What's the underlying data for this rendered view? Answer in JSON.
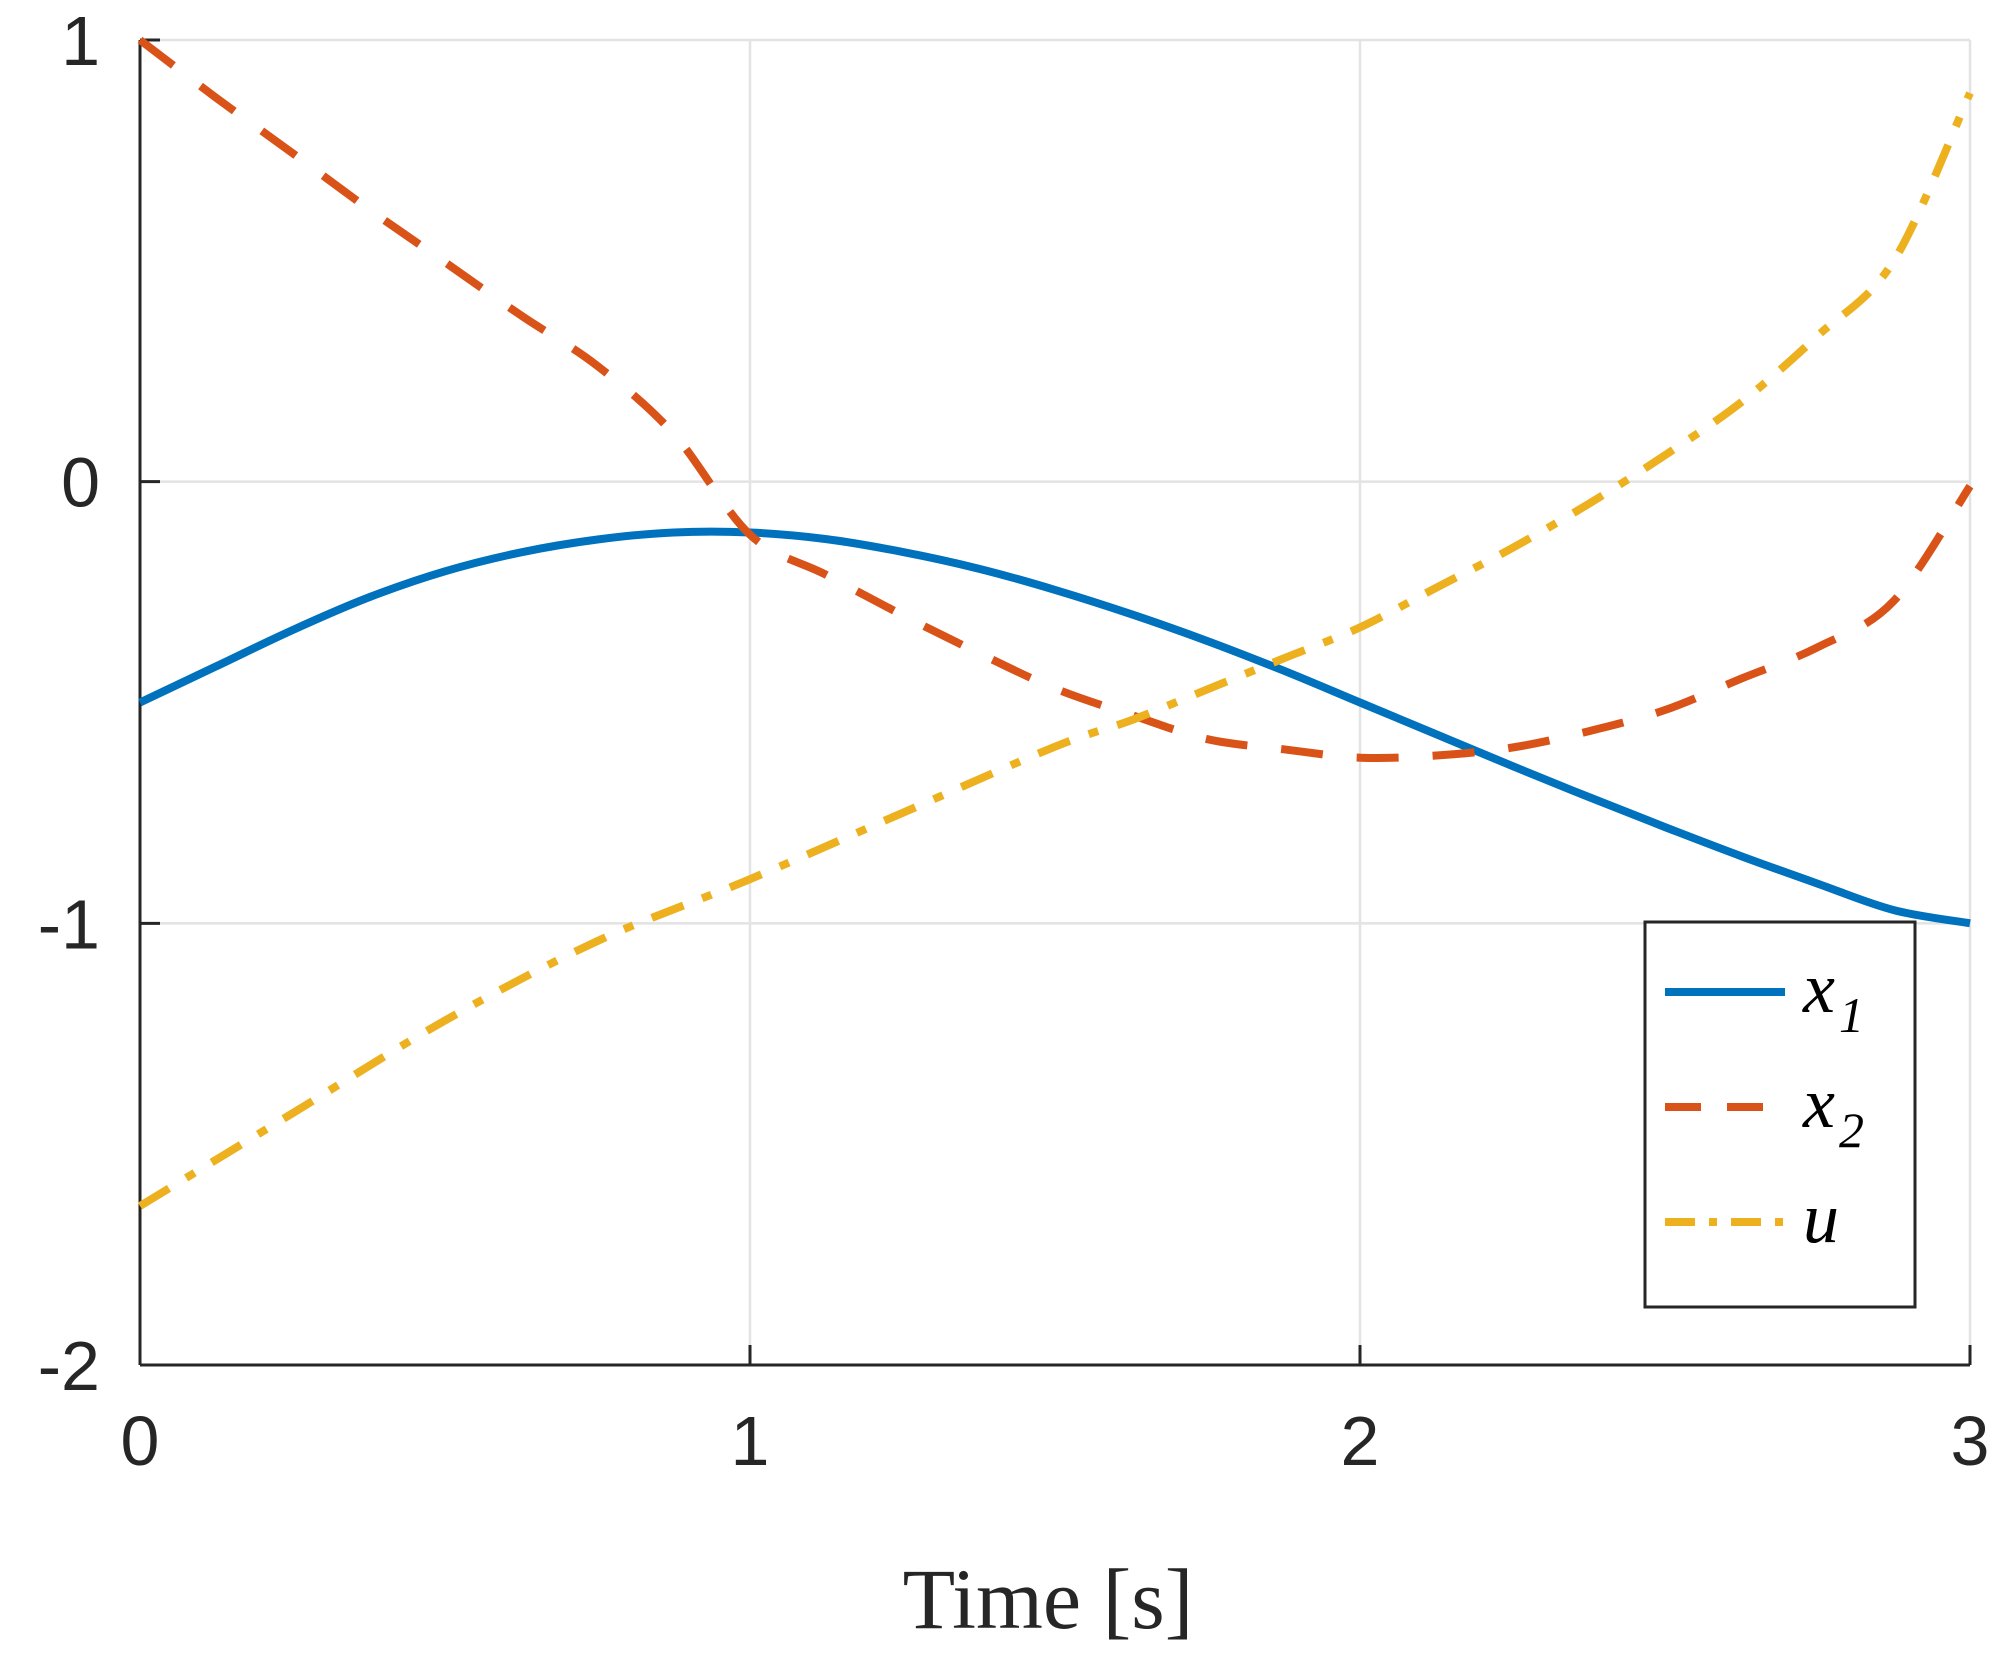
{
  "chart_data": {
    "type": "line",
    "title": "",
    "xlabel": "Time [s]",
    "ylabel": "",
    "xlim": [
      0,
      3
    ],
    "ylim": [
      -2,
      1
    ],
    "xticks": [
      0,
      1,
      2,
      3
    ],
    "yticks": [
      -2,
      -1,
      0,
      1
    ],
    "xtick_labels": [
      "0",
      "1",
      "2",
      "3"
    ],
    "ytick_labels": [
      "-2",
      "-1",
      "0",
      "1"
    ],
    "grid": true,
    "legend": {
      "position": "bottom-right"
    },
    "series": [
      {
        "name": "x1",
        "legend_label": {
          "main": "x",
          "sub": "1"
        },
        "color": "#0072BD",
        "style": "solid",
        "x": [
          0,
          0.125,
          0.25,
          0.375,
          0.5,
          0.625,
          0.75,
          0.875,
          1.0,
          1.125,
          1.25,
          1.375,
          1.5,
          1.625,
          1.75,
          1.875,
          2.0,
          2.125,
          2.25,
          2.375,
          2.5,
          2.625,
          2.75,
          2.875,
          3.0
        ],
        "y": [
          -0.5,
          -0.418,
          -0.336,
          -0.262,
          -0.203,
          -0.16,
          -0.131,
          -0.115,
          -0.115,
          -0.13,
          -0.159,
          -0.197,
          -0.245,
          -0.3,
          -0.361,
          -0.428,
          -0.5,
          -0.572,
          -0.644,
          -0.714,
          -0.782,
          -0.848,
          -0.91,
          -0.97,
          -1.0
        ]
      },
      {
        "name": "x2",
        "legend_label": {
          "main": "x",
          "sub": "2"
        },
        "color": "#D95319",
        "style": "dashed",
        "x": [
          0,
          0.125,
          0.25,
          0.375,
          0.5,
          0.625,
          0.75,
          0.875,
          1.0,
          1.125,
          1.25,
          1.375,
          1.5,
          1.625,
          1.75,
          1.875,
          2.0,
          2.125,
          2.25,
          2.375,
          2.5,
          2.625,
          2.75,
          2.875,
          3.0
        ],
        "y": [
          1.0,
          0.869,
          0.744,
          0.617,
          0.497,
          0.376,
          0.262,
          0.108,
          -0.12,
          -0.211,
          -0.302,
          -0.388,
          -0.468,
          -0.528,
          -0.583,
          -0.606,
          -0.625,
          -0.62,
          -0.602,
          -0.565,
          -0.517,
          -0.446,
          -0.375,
          -0.27,
          -0.01
        ]
      },
      {
        "name": "u",
        "legend_label": {
          "main": "u",
          "sub": ""
        },
        "color": "#EDB120",
        "style": "dashdot",
        "x": [
          0,
          0.25,
          0.5,
          0.75,
          1.0,
          1.25,
          1.5,
          1.625,
          1.75,
          1.875,
          2.0,
          2.125,
          2.25,
          2.375,
          2.5,
          2.625,
          2.75,
          2.875,
          3.0
        ],
        "y": [
          -1.64,
          -1.43,
          -1.22,
          -1.04,
          -0.9,
          -0.75,
          -0.6,
          -0.54,
          -0.47,
          -0.4,
          -0.33,
          -0.24,
          -0.15,
          -0.05,
          0.06,
          0.18,
          0.33,
          0.5,
          0.88
        ]
      }
    ]
  }
}
